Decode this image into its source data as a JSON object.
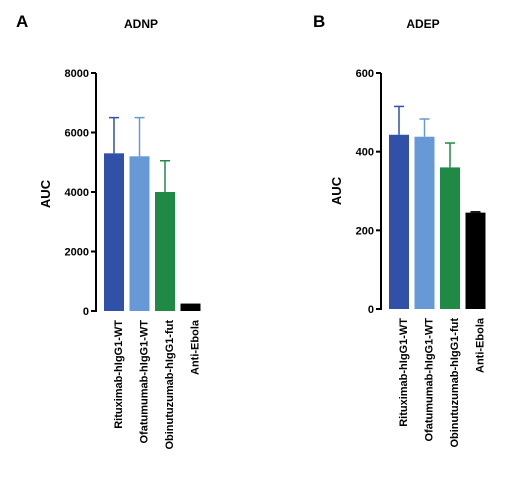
{
  "chart_data": [
    {
      "type": "bar",
      "panel_label": "A",
      "title": "ADNP",
      "xlabel": "",
      "ylabel": "AUC",
      "ylim": [
        0,
        8000
      ],
      "yticks": [
        0,
        2000,
        4000,
        6000,
        8000
      ],
      "ytick_labels": [
        "0",
        "2000",
        "4000",
        "6000",
        "8000"
      ],
      "grid": false,
      "categories": [
        "Rituximab-hIgG1-WT",
        "Ofatumumab-hIgG1-WT",
        "Obinutuzumab-hIgG1-fut",
        "Anti-Ebola"
      ],
      "values": [
        5300,
        5200,
        4000,
        250
      ],
      "errors": [
        1200,
        1300,
        1050,
        0
      ],
      "colors": [
        "#3150a8",
        "#6699d6",
        "#1e8a45",
        "#000000"
      ]
    },
    {
      "type": "bar",
      "panel_label": "B",
      "title": "ADEP",
      "xlabel": "",
      "ylabel": "AUC",
      "ylim": [
        0,
        600
      ],
      "yticks": [
        0,
        200,
        400,
        600
      ],
      "ytick_labels": [
        "0",
        "200",
        "400",
        "600"
      ],
      "grid": false,
      "categories": [
        "Rituximab-hIgG1-WT",
        "Ofatumumab-hIgG1-WT",
        "Obinutuzumab-hIgG1-fut",
        "Anti-Ebola"
      ],
      "values": [
        443,
        438,
        360,
        245
      ],
      "errors": [
        72,
        45,
        62,
        2
      ],
      "colors": [
        "#3150a8",
        "#6699d6",
        "#1e8a45",
        "#000000"
      ]
    }
  ]
}
